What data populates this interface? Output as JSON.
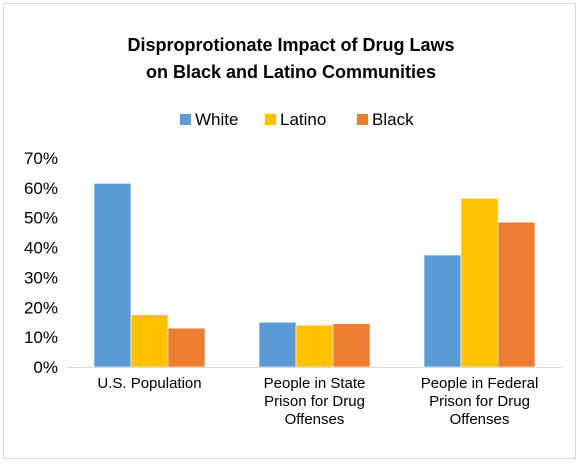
{
  "chart_data": {
    "type": "bar",
    "title_line1": "Disproprotionate Impact of Drug Laws",
    "title_line2": "on Black and Latino Communities",
    "categories": [
      [
        "U.S. Population"
      ],
      [
        "People in State",
        "Prison for Drug",
        "Offenses"
      ],
      [
        "People in Federal",
        "Prison for Drug",
        "Offenses"
      ]
    ],
    "series": [
      {
        "name": "White",
        "color": "#5b9bd5",
        "values": [
          61.5,
          15.0,
          37.5
        ]
      },
      {
        "name": "Latino",
        "color": "#ffc000",
        "values": [
          17.5,
          14.0,
          56.5
        ]
      },
      {
        "name": "Black",
        "color": "#ed7d31",
        "values": [
          13.0,
          14.5,
          48.5
        ]
      }
    ],
    "ylim": [
      0,
      70
    ],
    "yticks": [
      0,
      10,
      20,
      30,
      40,
      50,
      60,
      70
    ],
    "ytick_labels": [
      "0%",
      "10%",
      "20%",
      "30%",
      "40%",
      "50%",
      "60%",
      "70%"
    ],
    "grid": false,
    "legend_position": "top"
  }
}
